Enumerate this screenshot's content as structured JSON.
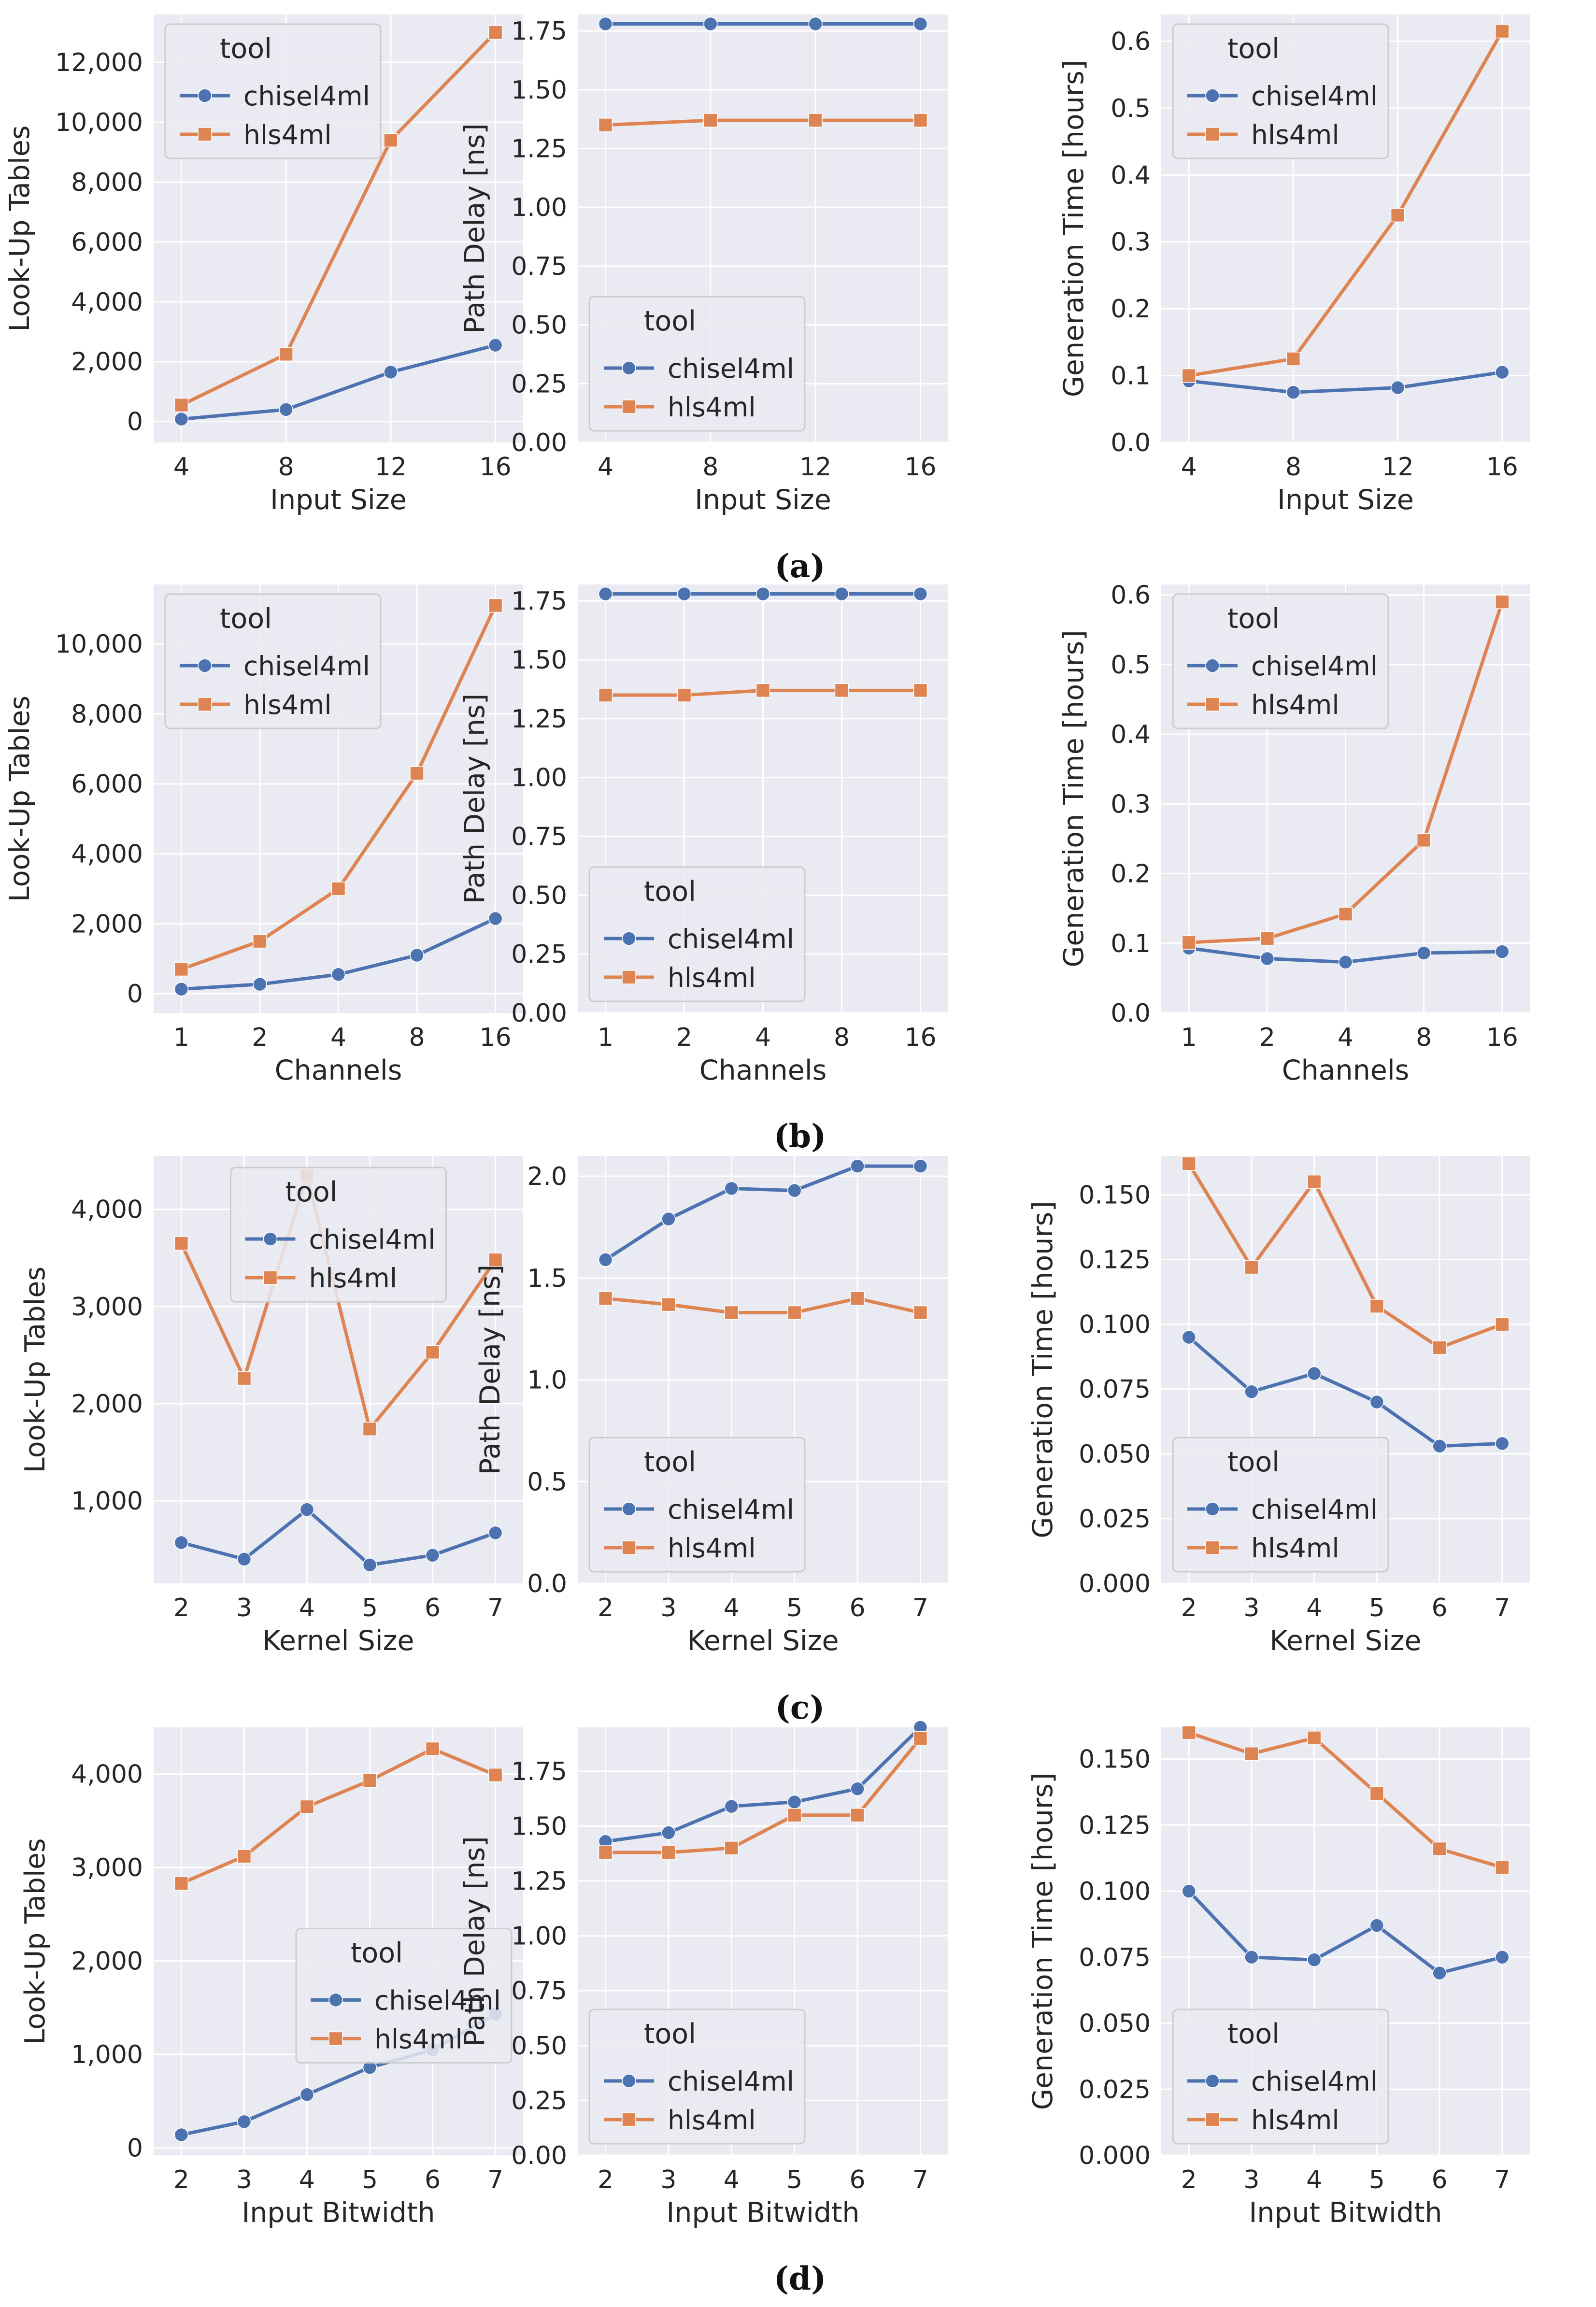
{
  "colors": {
    "chisel4ml": "#4C72B0",
    "hls4ml": "#DD8452",
    "panel_bg": "#EAEAF2",
    "grid": "#FFFFFF"
  },
  "legend": {
    "title": "tool",
    "entries": [
      "chisel4ml",
      "hls4ml"
    ]
  },
  "captions": [
    "(a)",
    "(b)",
    "(c)",
    "(d)"
  ],
  "chart_data": [
    {
      "row": 0,
      "col": 0,
      "type": "line",
      "xlabel": "Input Size",
      "ylabel": "Look-Up Tables",
      "categories": [
        "4",
        "8",
        "12",
        "16"
      ],
      "ylim": [
        -700,
        13600
      ],
      "yticks": [
        0,
        2000,
        4000,
        6000,
        8000,
        10000,
        12000
      ],
      "yticklabels": [
        "0",
        "2,000",
        "4,000",
        "6,000",
        "8,000",
        "10,000",
        "12,000"
      ],
      "legend_loc": "top-left",
      "series": [
        {
          "name": "chisel4ml",
          "values": [
            80,
            400,
            1650,
            2550
          ]
        },
        {
          "name": "hls4ml",
          "values": [
            550,
            2250,
            9400,
            13000
          ]
        }
      ]
    },
    {
      "row": 0,
      "col": 1,
      "type": "line",
      "xlabel": "Input Size",
      "ylabel": "Path Delay [ns]",
      "categories": [
        "4",
        "8",
        "12",
        "16"
      ],
      "ylim": [
        0,
        1.82
      ],
      "yticks": [
        0,
        0.25,
        0.5,
        0.75,
        1.0,
        1.25,
        1.5,
        1.75
      ],
      "yticklabels": [
        "0.00",
        "0.25",
        "0.50",
        "0.75",
        "1.00",
        "1.25",
        "1.50",
        "1.75"
      ],
      "legend_loc": "bottom-left",
      "series": [
        {
          "name": "chisel4ml",
          "values": [
            1.78,
            1.78,
            1.78,
            1.78
          ]
        },
        {
          "name": "hls4ml",
          "values": [
            1.35,
            1.37,
            1.37,
            1.37
          ]
        }
      ]
    },
    {
      "row": 0,
      "col": 2,
      "type": "line",
      "xlabel": "Input Size",
      "ylabel": "Generation Time [hours]",
      "categories": [
        "4",
        "8",
        "12",
        "16"
      ],
      "ylim": [
        0,
        0.64
      ],
      "yticks": [
        0,
        0.1,
        0.2,
        0.3,
        0.4,
        0.5,
        0.6
      ],
      "yticklabels": [
        "0.0",
        "0.1",
        "0.2",
        "0.3",
        "0.4",
        "0.5",
        "0.6"
      ],
      "legend_loc": "top-left",
      "series": [
        {
          "name": "chisel4ml",
          "values": [
            0.092,
            0.075,
            0.082,
            0.105
          ]
        },
        {
          "name": "hls4ml",
          "values": [
            0.1,
            0.125,
            0.34,
            0.615
          ]
        }
      ]
    },
    {
      "row": 1,
      "col": 0,
      "type": "line",
      "xlabel": "Channels",
      "ylabel": "Look-Up Tables",
      "categories": [
        "1",
        "2",
        "4",
        "8",
        "16"
      ],
      "ylim": [
        -550,
        11700
      ],
      "yticks": [
        0,
        2000,
        4000,
        6000,
        8000,
        10000
      ],
      "yticklabels": [
        "0",
        "2,000",
        "4,000",
        "6,000",
        "8,000",
        "10,000"
      ],
      "legend_loc": "top-left",
      "series": [
        {
          "name": "chisel4ml",
          "values": [
            130,
            270,
            550,
            1100,
            2150
          ]
        },
        {
          "name": "hls4ml",
          "values": [
            700,
            1500,
            3000,
            6300,
            11100
          ]
        }
      ]
    },
    {
      "row": 1,
      "col": 1,
      "type": "line",
      "xlabel": "Channels",
      "ylabel": "Path Delay [ns]",
      "categories": [
        "1",
        "2",
        "4",
        "8",
        "16"
      ],
      "ylim": [
        0,
        1.82
      ],
      "yticks": [
        0,
        0.25,
        0.5,
        0.75,
        1.0,
        1.25,
        1.5,
        1.75
      ],
      "yticklabels": [
        "0.00",
        "0.25",
        "0.50",
        "0.75",
        "1.00",
        "1.25",
        "1.50",
        "1.75"
      ],
      "legend_loc": "bottom-left",
      "series": [
        {
          "name": "chisel4ml",
          "values": [
            1.78,
            1.78,
            1.78,
            1.78,
            1.78
          ]
        },
        {
          "name": "hls4ml",
          "values": [
            1.35,
            1.35,
            1.37,
            1.37,
            1.37
          ]
        }
      ]
    },
    {
      "row": 1,
      "col": 2,
      "type": "line",
      "xlabel": "Channels",
      "ylabel": "Generation Time [hours]",
      "categories": [
        "1",
        "2",
        "4",
        "8",
        "16"
      ],
      "ylim": [
        0,
        0.615
      ],
      "yticks": [
        0,
        0.1,
        0.2,
        0.3,
        0.4,
        0.5,
        0.6
      ],
      "yticklabels": [
        "0.0",
        "0.1",
        "0.2",
        "0.3",
        "0.4",
        "0.5",
        "0.6"
      ],
      "legend_loc": "top-left",
      "series": [
        {
          "name": "chisel4ml",
          "values": [
            0.093,
            0.078,
            0.073,
            0.086,
            0.088
          ]
        },
        {
          "name": "hls4ml",
          "values": [
            0.101,
            0.107,
            0.142,
            0.248,
            0.59
          ]
        }
      ]
    },
    {
      "row": 2,
      "col": 0,
      "type": "line",
      "xlabel": "Kernel Size",
      "ylabel": "Look-Up Tables",
      "categories": [
        "2",
        "3",
        "4",
        "5",
        "6",
        "7"
      ],
      "ylim": [
        150,
        4550
      ],
      "yticks": [
        1000,
        2000,
        3000,
        4000
      ],
      "yticklabels": [
        "1,000",
        "2,000",
        "3,000",
        "4,000"
      ],
      "legend_loc": "top-center",
      "series": [
        {
          "name": "chisel4ml",
          "values": [
            570,
            400,
            910,
            340,
            440,
            670
          ]
        },
        {
          "name": "hls4ml",
          "values": [
            3650,
            2260,
            4350,
            1740,
            2530,
            3480
          ]
        }
      ]
    },
    {
      "row": 2,
      "col": 1,
      "type": "line",
      "xlabel": "Kernel Size",
      "ylabel": "Path Delay [ns]",
      "categories": [
        "2",
        "3",
        "4",
        "5",
        "6",
        "7"
      ],
      "ylim": [
        0,
        2.1
      ],
      "yticks": [
        0,
        0.5,
        1.0,
        1.5,
        2.0
      ],
      "yticklabels": [
        "0.0",
        "0.5",
        "1.0",
        "1.5",
        "2.0"
      ],
      "legend_loc": "bottom-left",
      "series": [
        {
          "name": "chisel4ml",
          "values": [
            1.59,
            1.79,
            1.94,
            1.93,
            2.05,
            2.05
          ]
        },
        {
          "name": "hls4ml",
          "values": [
            1.4,
            1.37,
            1.33,
            1.33,
            1.4,
            1.33
          ]
        }
      ]
    },
    {
      "row": 2,
      "col": 2,
      "type": "line",
      "xlabel": "Kernel Size",
      "ylabel": "Generation Time [hours]",
      "categories": [
        "2",
        "3",
        "4",
        "5",
        "6",
        "7"
      ],
      "ylim": [
        0,
        0.165
      ],
      "yticks": [
        0,
        0.025,
        0.05,
        0.075,
        0.1,
        0.125,
        0.15
      ],
      "yticklabels": [
        "0.000",
        "0.025",
        "0.050",
        "0.075",
        "0.100",
        "0.125",
        "0.150"
      ],
      "legend_loc": "bottom-left",
      "series": [
        {
          "name": "chisel4ml",
          "values": [
            0.095,
            0.074,
            0.081,
            0.07,
            0.053,
            0.054
          ]
        },
        {
          "name": "hls4ml",
          "values": [
            0.162,
            0.122,
            0.155,
            0.107,
            0.091,
            0.1
          ]
        }
      ]
    },
    {
      "row": 3,
      "col": 0,
      "type": "line",
      "xlabel": "Input Bitwidth",
      "ylabel": "Look-Up Tables",
      "categories": [
        "2",
        "3",
        "4",
        "5",
        "6",
        "7"
      ],
      "ylim": [
        -80,
        4500
      ],
      "yticks": [
        0,
        1000,
        2000,
        3000,
        4000
      ],
      "yticklabels": [
        "0",
        "1,000",
        "2,000",
        "3,000",
        "4,000"
      ],
      "legend_loc": "center-right",
      "series": [
        {
          "name": "chisel4ml",
          "values": [
            140,
            280,
            570,
            860,
            1050,
            1430
          ]
        },
        {
          "name": "hls4ml",
          "values": [
            2830,
            3120,
            3650,
            3930,
            4270,
            3990
          ]
        }
      ]
    },
    {
      "row": 3,
      "col": 1,
      "type": "line",
      "xlabel": "Input Bitwidth",
      "ylabel": "Path Delay [ns]",
      "categories": [
        "2",
        "3",
        "4",
        "5",
        "6",
        "7"
      ],
      "ylim": [
        0,
        1.95
      ],
      "yticks": [
        0,
        0.25,
        0.5,
        0.75,
        1.0,
        1.25,
        1.5,
        1.75
      ],
      "yticklabels": [
        "0.00",
        "0.25",
        "0.50",
        "0.75",
        "1.00",
        "1.25",
        "1.50",
        "1.75"
      ],
      "legend_loc": "bottom-left",
      "series": [
        {
          "name": "chisel4ml",
          "values": [
            1.43,
            1.47,
            1.59,
            1.61,
            1.67,
            1.95
          ]
        },
        {
          "name": "hls4ml",
          "values": [
            1.38,
            1.38,
            1.4,
            1.55,
            1.55,
            1.9
          ]
        }
      ]
    },
    {
      "row": 3,
      "col": 2,
      "type": "line",
      "xlabel": "Input Bitwidth",
      "ylabel": "Generation Time [hours]",
      "categories": [
        "2",
        "3",
        "4",
        "5",
        "6",
        "7"
      ],
      "ylim": [
        0,
        0.162
      ],
      "yticks": [
        0,
        0.025,
        0.05,
        0.075,
        0.1,
        0.125,
        0.15
      ],
      "yticklabels": [
        "0.000",
        "0.025",
        "0.050",
        "0.075",
        "0.100",
        "0.125",
        "0.150"
      ],
      "legend_loc": "bottom-left",
      "series": [
        {
          "name": "chisel4ml",
          "values": [
            0.1,
            0.075,
            0.074,
            0.087,
            0.069,
            0.075
          ]
        },
        {
          "name": "hls4ml",
          "values": [
            0.16,
            0.152,
            0.158,
            0.137,
            0.116,
            0.109
          ]
        }
      ]
    }
  ]
}
